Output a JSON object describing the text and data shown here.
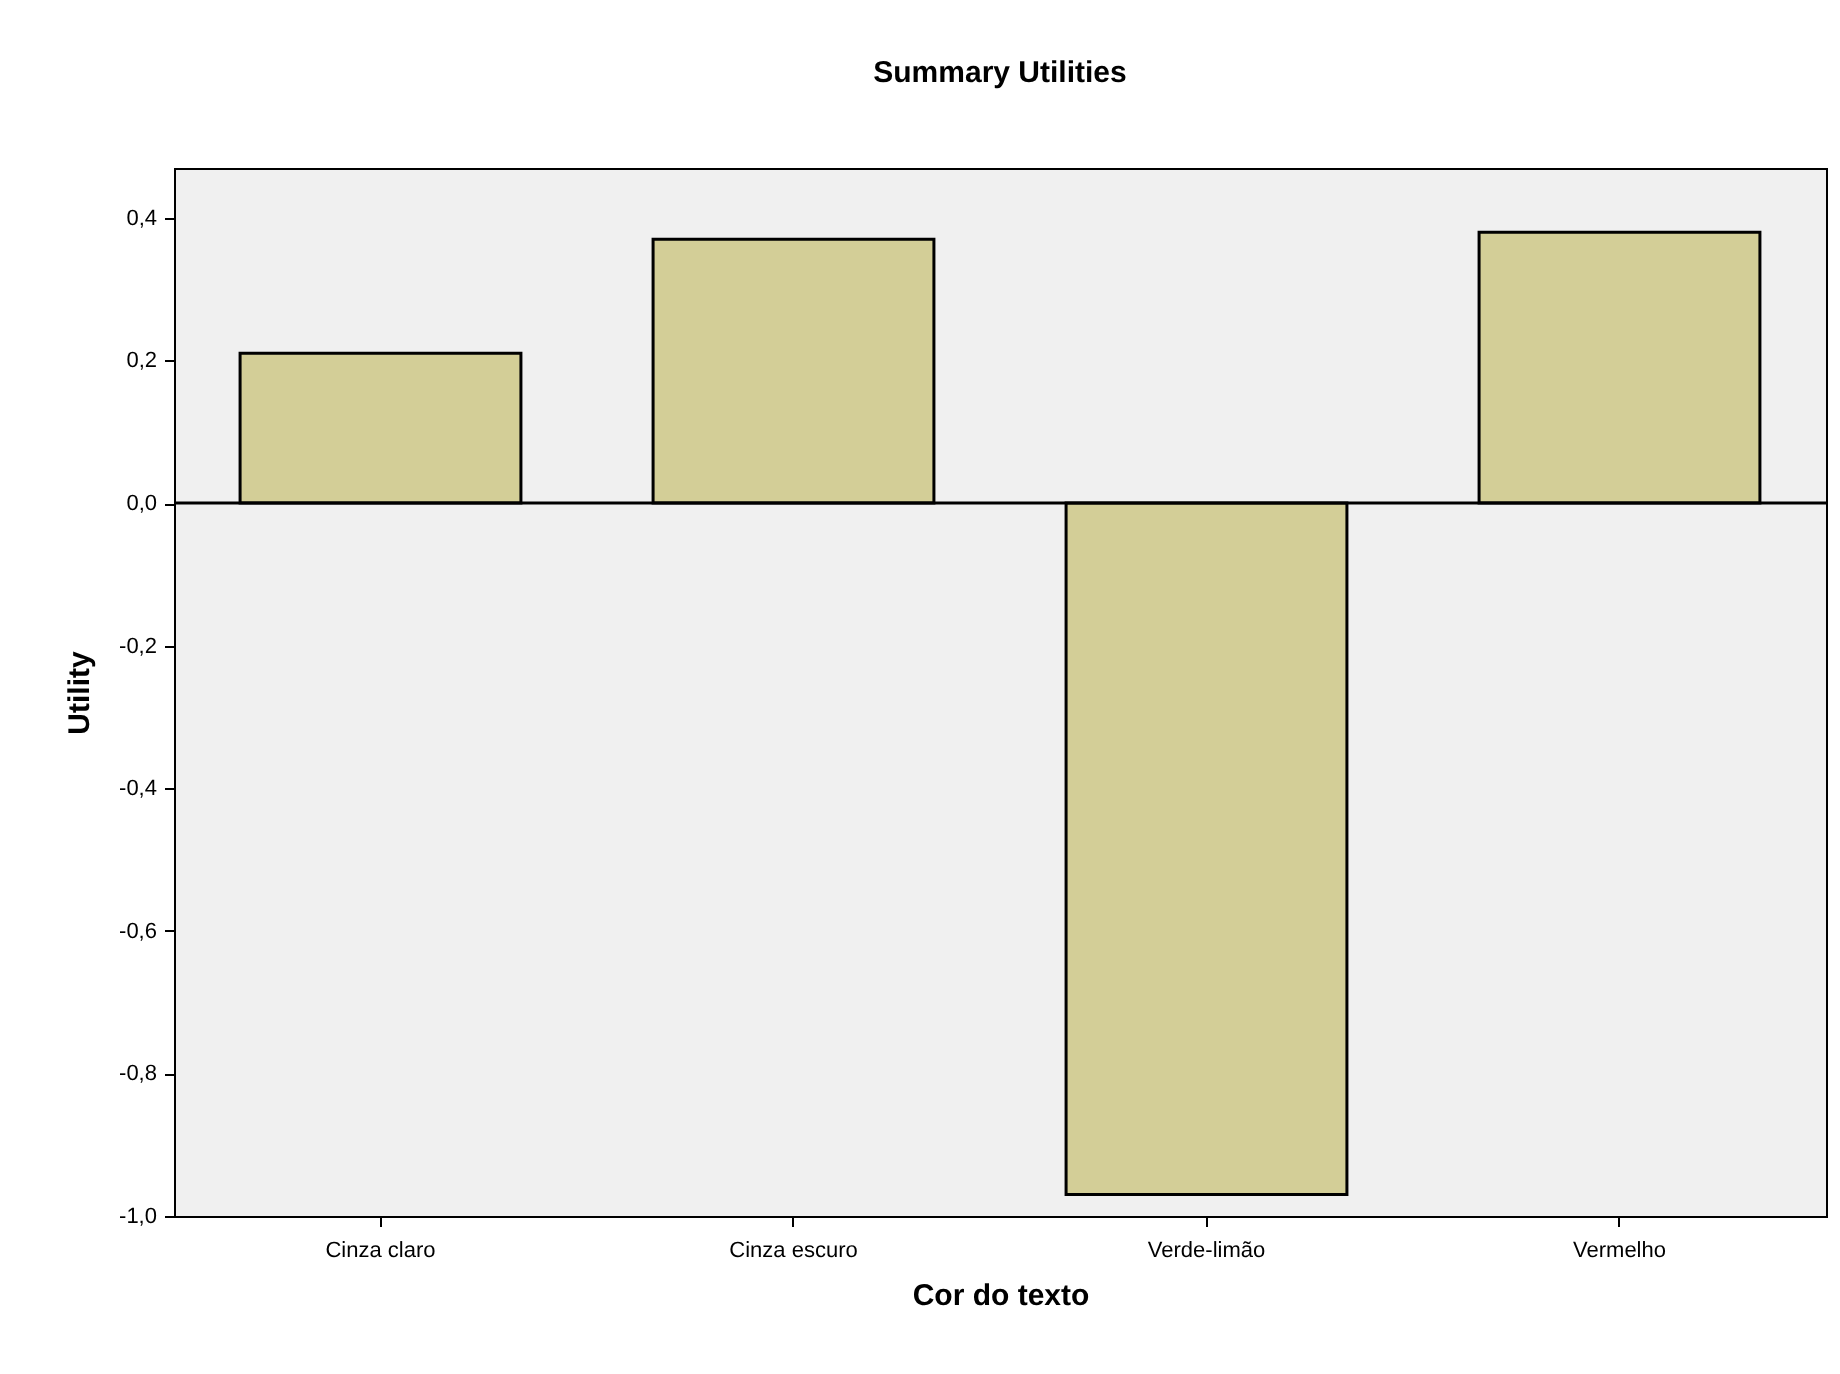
{
  "chart_data": {
    "type": "bar",
    "title": "Summary Utilities",
    "xlabel": "Cor do texto",
    "ylabel": "Utility",
    "categories": [
      "Cinza claro",
      "Cinza escuro",
      "Verde-limão",
      "Vermelho"
    ],
    "values": [
      0.21,
      0.37,
      -0.97,
      0.38
    ],
    "color": "#d3ce97",
    "ylim": [
      -1.0,
      0.47
    ],
    "yticks": [
      {
        "value": -1.0,
        "label": "-1,0"
      },
      {
        "value": -0.8,
        "label": "-0,8"
      },
      {
        "value": -0.6,
        "label": "-0,6"
      },
      {
        "value": -0.4,
        "label": "-0,4"
      },
      {
        "value": -0.2,
        "label": "-0,2"
      },
      {
        "value": 0,
        "label": "0,0"
      },
      {
        "value": 0.2,
        "label": "0,2"
      },
      {
        "value": 0.4,
        "label": "0,4"
      }
    ],
    "ref_lines": [
      {
        "axis": "y",
        "value": 0
      }
    ],
    "grid": false
  }
}
